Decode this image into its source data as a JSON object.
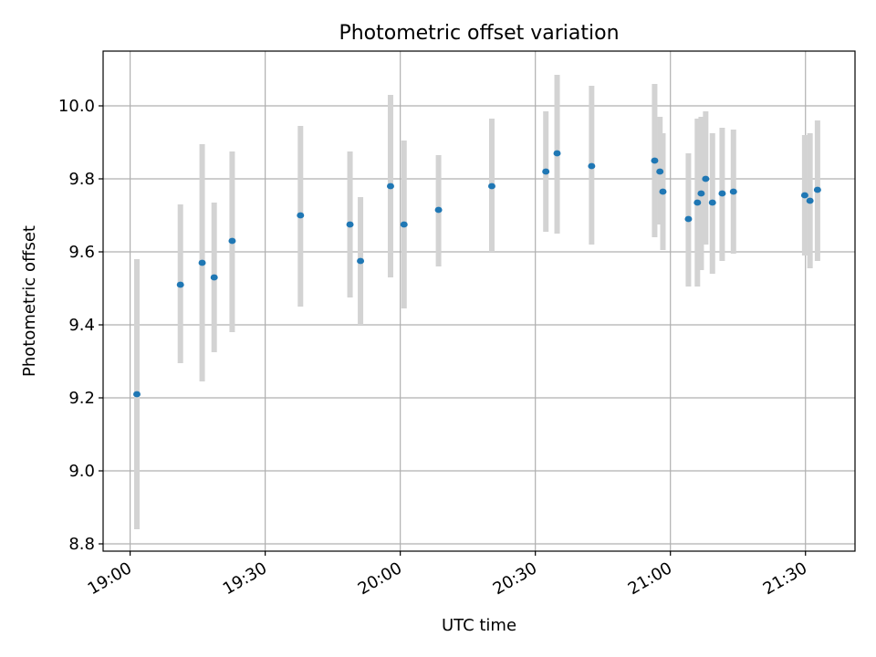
{
  "chart_data": {
    "type": "scatter",
    "title": "Photometric offset variation",
    "xlabel": "UTC time",
    "ylabel": "Photometric offset",
    "x_ticks": [
      "19:00",
      "19:30",
      "20:00",
      "20:30",
      "21:00",
      "21:30"
    ],
    "y_ticks": [
      "8.8",
      "9.0",
      "9.2",
      "9.4",
      "9.6",
      "9.8",
      "10.0"
    ],
    "xlim": [
      "18:54",
      "21:41"
    ],
    "ylim": [
      8.78,
      10.15
    ],
    "grid": true,
    "marker_color": "#1f77b4",
    "errorbar_color": "#d3d3d3",
    "points": [
      {
        "x": "19:01:30",
        "y": 9.21,
        "ylo": 8.84,
        "yhi": 9.58
      },
      {
        "x": "19:11:10",
        "y": 9.51,
        "ylo": 9.295,
        "yhi": 9.73
      },
      {
        "x": "19:16:00",
        "y": 9.57,
        "ylo": 9.245,
        "yhi": 9.895
      },
      {
        "x": "19:18:40",
        "y": 9.53,
        "ylo": 9.325,
        "yhi": 9.735
      },
      {
        "x": "19:22:40",
        "y": 9.63,
        "ylo": 9.38,
        "yhi": 9.875
      },
      {
        "x": "19:37:50",
        "y": 9.7,
        "ylo": 9.45,
        "yhi": 9.945
      },
      {
        "x": "19:48:50",
        "y": 9.675,
        "ylo": 9.475,
        "yhi": 9.875
      },
      {
        "x": "19:51:10",
        "y": 9.575,
        "ylo": 9.4,
        "yhi": 9.75
      },
      {
        "x": "19:57:50",
        "y": 9.78,
        "ylo": 9.53,
        "yhi": 10.03
      },
      {
        "x": "20:00:50",
        "y": 9.675,
        "ylo": 9.445,
        "yhi": 9.905
      },
      {
        "x": "20:08:30",
        "y": 9.715,
        "ylo": 9.56,
        "yhi": 9.865
      },
      {
        "x": "20:20:20",
        "y": 9.78,
        "ylo": 9.6,
        "yhi": 9.965
      },
      {
        "x": "20:32:20",
        "y": 9.82,
        "ylo": 9.655,
        "yhi": 9.985
      },
      {
        "x": "20:34:50",
        "y": 9.87,
        "ylo": 9.65,
        "yhi": 10.085
      },
      {
        "x": "20:42:30",
        "y": 9.835,
        "ylo": 9.62,
        "yhi": 10.055
      },
      {
        "x": "20:56:30",
        "y": 9.85,
        "ylo": 9.64,
        "yhi": 10.06
      },
      {
        "x": "20:57:40",
        "y": 9.82,
        "ylo": 9.675,
        "yhi": 9.97
      },
      {
        "x": "20:58:20",
        "y": 9.765,
        "ylo": 9.605,
        "yhi": 9.925
      },
      {
        "x": "21:04:00",
        "y": 9.69,
        "ylo": 9.505,
        "yhi": 9.87
      },
      {
        "x": "21:06:00",
        "y": 9.735,
        "ylo": 9.505,
        "yhi": 9.965
      },
      {
        "x": "21:06:50",
        "y": 9.76,
        "ylo": 9.55,
        "yhi": 9.97
      },
      {
        "x": "21:07:50",
        "y": 9.8,
        "ylo": 9.62,
        "yhi": 9.985
      },
      {
        "x": "21:09:20",
        "y": 9.735,
        "ylo": 9.54,
        "yhi": 9.925
      },
      {
        "x": "21:11:30",
        "y": 9.76,
        "ylo": 9.575,
        "yhi": 9.94
      },
      {
        "x": "21:14:00",
        "y": 9.765,
        "ylo": 9.595,
        "yhi": 9.935
      },
      {
        "x": "21:29:50",
        "y": 9.755,
        "ylo": 9.59,
        "yhi": 9.92
      },
      {
        "x": "21:31:00",
        "y": 9.74,
        "ylo": 9.555,
        "yhi": 9.925
      },
      {
        "x": "21:32:40",
        "y": 9.77,
        "ylo": 9.575,
        "yhi": 9.96
      }
    ]
  }
}
